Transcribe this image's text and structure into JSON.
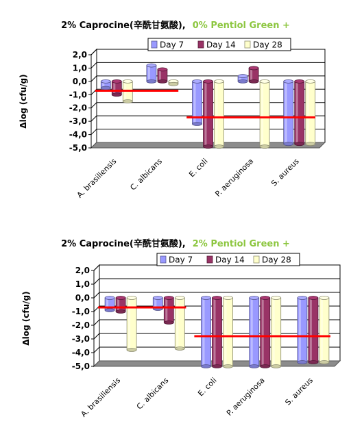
{
  "colors": {
    "day7": "#9999ff",
    "day14": "#993366",
    "day28": "#ffffcc",
    "threshold": "#ff0000",
    "floor": "#8c8c8c",
    "title_green": "#8cc63f"
  },
  "chart_data": [
    {
      "type": "bar",
      "title": "2%  Caprocine(辛酰甘氨酸),",
      "subtitle": "0% Pentiol Green +",
      "ylabel": "Δlog (cfu/g)",
      "ylim": [
        -5.0,
        2.0
      ],
      "yticks": [
        "2,0",
        "1,0",
        "0,0",
        "-1,0",
        "-2,0",
        "-3,0",
        "-4,0",
        "-5,0"
      ],
      "categories": [
        "A. brasiliensis",
        "C. albicans",
        "E. coli",
        "P. aeruginosa",
        "S. aureus"
      ],
      "legend_position": "top",
      "grid": true,
      "series": [
        {
          "name": "Day 7",
          "values": [
            -0.5,
            1.2,
            -3.2,
            0.4,
            -4.7
          ]
        },
        {
          "name": "Day 14",
          "values": [
            -1.0,
            0.9,
            -4.9,
            1.0,
            -4.7
          ]
        },
        {
          "name": "Day 28",
          "values": [
            -1.5,
            -0.2,
            -4.9,
            -4.9,
            -4.7
          ]
        }
      ],
      "threshold_lines": [
        {
          "y": -0.7,
          "from": 0,
          "to": 1
        },
        {
          "y": -2.7,
          "from": 2,
          "to": 4
        }
      ]
    },
    {
      "type": "bar",
      "title": "2%  Caprocine(辛酰甘氨酸),",
      "subtitle": "2% Pentiol Green +",
      "ylabel": "Δlog (cfu/g)",
      "ylim": [
        -5.0,
        2.0
      ],
      "yticks": [
        "2,0",
        "1,0",
        "0,0",
        "-1,0",
        "-2,0",
        "-3,0",
        "-4,0",
        "-5,0"
      ],
      "categories": [
        "A. brasiliensis",
        "C. albicans",
        "E. coli",
        "P. aeruginosa",
        "S. aureus"
      ],
      "legend_position": "top",
      "grid": true,
      "series": [
        {
          "name": "Day 7",
          "values": [
            -0.9,
            -0.8,
            -5.0,
            -5.0,
            -4.7
          ]
        },
        {
          "name": "Day 14",
          "values": [
            -1.0,
            -1.8,
            -5.0,
            -5.0,
            -4.7
          ]
        },
        {
          "name": "Day 28",
          "values": [
            -3.8,
            -3.7,
            -5.0,
            -5.0,
            -4.7
          ]
        }
      ],
      "threshold_lines": [
        {
          "y": -0.7,
          "from": 0,
          "to": 1
        },
        {
          "y": -2.8,
          "from": 2,
          "to": 4
        }
      ]
    }
  ]
}
